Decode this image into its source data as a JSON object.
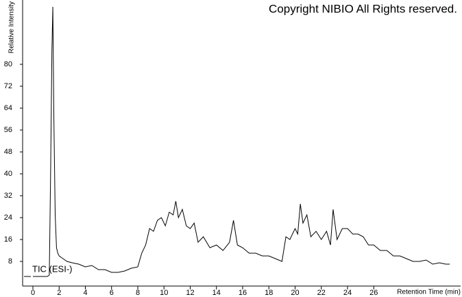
{
  "chart_data": {
    "type": "line",
    "title": "Copyright NIBIO All Rights reserved.",
    "x_label": "Retention Time (min)",
    "y_label": "Relative Intensity",
    "series": [
      {
        "name": "TIC (ESI-)",
        "color": "#000000",
        "x": [
          0,
          1.1,
          1.25,
          1.35,
          1.45,
          1.52,
          1.6,
          1.7,
          1.8,
          1.9,
          2.0,
          2.3,
          2.6,
          3.0,
          3.5,
          4.0,
          4.5,
          5.0,
          5.5,
          6.0,
          6.5,
          7.0,
          7.5,
          8.0,
          8.3,
          8.6,
          8.9,
          9.2,
          9.5,
          9.8,
          10.1,
          10.4,
          10.7,
          10.9,
          11.1,
          11.4,
          11.7,
          12.0,
          12.3,
          12.6,
          13.0,
          13.5,
          14.0,
          14.5,
          15.0,
          15.3,
          15.6,
          16.0,
          16.5,
          17.0,
          17.5,
          18.0,
          18.5,
          19.0,
          19.3,
          19.6,
          20.0,
          20.2,
          20.4,
          20.6,
          20.9,
          21.2,
          21.6,
          22.0,
          22.4,
          22.7,
          22.9,
          23.2,
          23.6,
          24.0,
          24.4,
          24.8,
          25.2,
          25.6,
          26.0,
          26.5,
          27.0,
          27.5,
          28.0,
          28.5,
          29.0,
          29.5,
          30.0,
          30.5,
          31.0,
          31.5,
          31.8
        ],
        "values": [
          2.5,
          2.5,
          3,
          40,
          85,
          101,
          60,
          25,
          13,
          11,
          10,
          9,
          8,
          7.5,
          7,
          6,
          6.5,
          5,
          5,
          4,
          4,
          4.5,
          5.5,
          6,
          11,
          14,
          20,
          19,
          23,
          24,
          21,
          26,
          25,
          30,
          24,
          27,
          21,
          20,
          22,
          15,
          17,
          13,
          14,
          12,
          15,
          23,
          14,
          13,
          11,
          11,
          10,
          10,
          9,
          8,
          17,
          16,
          20,
          18,
          29,
          22,
          25,
          17,
          19,
          16,
          19,
          14,
          27,
          16,
          20,
          20,
          18,
          18,
          17,
          14,
          14,
          12,
          12,
          10,
          10,
          9,
          8,
          8,
          8.5,
          7,
          7.5,
          7,
          7
        ]
      }
    ],
    "xlim": [
      0,
      32
    ],
    "xticks": [
      0,
      2,
      4,
      6,
      8,
      10,
      12,
      14,
      16,
      18,
      20,
      22,
      24,
      26
    ],
    "ylim": [
      0,
      102
    ],
    "yticks": [
      8,
      16,
      24,
      32,
      40,
      48,
      56,
      64,
      72,
      80
    ]
  }
}
